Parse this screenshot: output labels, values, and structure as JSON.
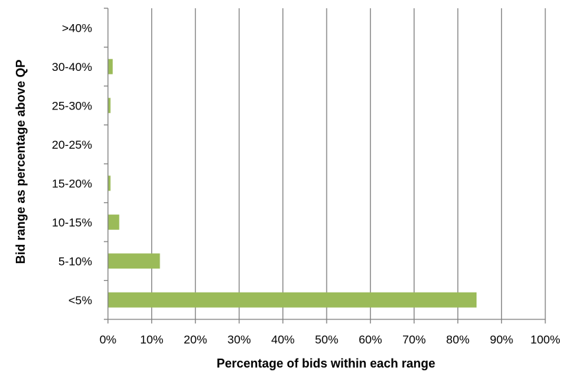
{
  "chart_data": {
    "type": "bar",
    "orientation": "horizontal",
    "title": "",
    "xlabel": "Percentage of bids within each range",
    "ylabel": "Bid range as percentage above QP",
    "categories": [
      "<5%",
      "5-10%",
      "10-15%",
      "15-20%",
      "20-25%",
      "25-30%",
      "30-40%",
      ">40%"
    ],
    "values": [
      84.2,
      11.8,
      2.5,
      0.5,
      0,
      0.5,
      1.0,
      0
    ],
    "xlim": [
      0,
      100
    ],
    "xticks": [
      "0%",
      "10%",
      "20%",
      "30%",
      "40%",
      "50%",
      "60%",
      "70%",
      "80%",
      "90%",
      "100%"
    ],
    "grid": "vertical",
    "legend": "none",
    "bar_color": "#9BBB59",
    "gridline_color": "#7F7F7F"
  }
}
